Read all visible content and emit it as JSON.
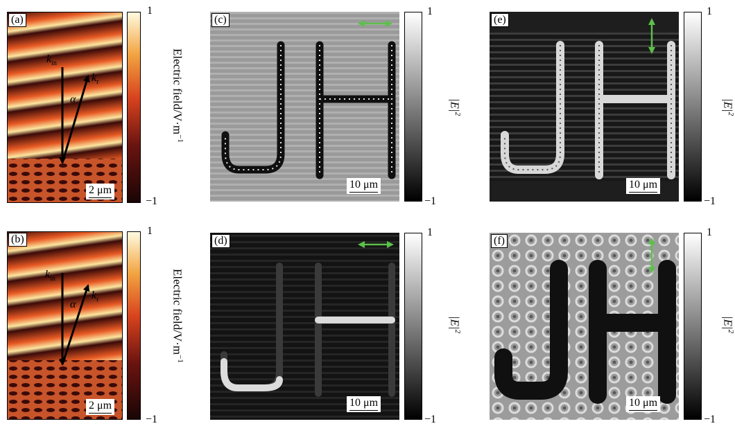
{
  "panels": {
    "a": {
      "label": "(a)",
      "scale": "2 μm"
    },
    "b": {
      "label": "(b)",
      "scale": "2 μm"
    },
    "c": {
      "label": "(c)",
      "scale": "10 μm"
    },
    "d": {
      "label": "(d)",
      "scale": "10 μm"
    },
    "e": {
      "label": "(e)",
      "scale": "10 μm"
    },
    "f": {
      "label": "(f)",
      "scale": "10 μm"
    }
  },
  "vectors": {
    "k_main": "k",
    "k_in_sub": "in",
    "k_r_sub": "r",
    "angle": "α"
  },
  "colorbars": {
    "max": "1",
    "min": "−1",
    "field_label": "Electric field/V·m",
    "field_label_sup": "−1",
    "intensity_label": "|E|",
    "intensity_sup": "2"
  },
  "letters": "JH",
  "colors": {
    "heat_dark": "#3a0a08",
    "heat_mid": "#d8431e",
    "heat_light": "#fff7c8",
    "polarization_arrow": "#5cc04a"
  },
  "polarization": {
    "c": "horizontal",
    "d": "horizontal",
    "e": "vertical",
    "f": "vertical"
  }
}
